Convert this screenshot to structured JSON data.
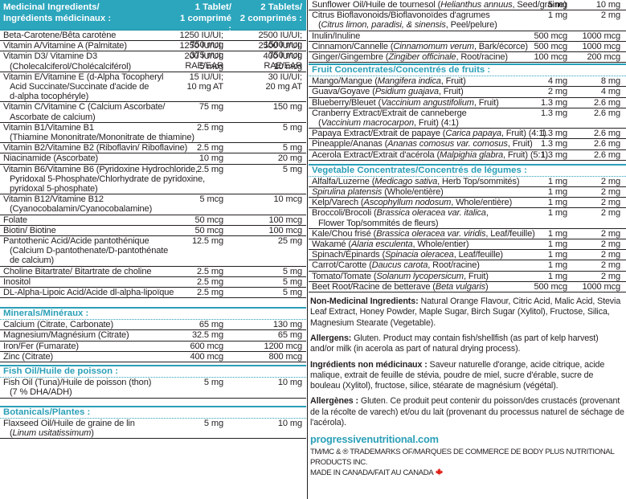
{
  "header": {
    "name_en": "Medicinal Ingredients/",
    "name_fr": "Ingrédients médicinaux :",
    "one_en": "1 Tablet/",
    "one_fr": "1 comprimé :",
    "two_en": "2 Tablets/",
    "two_fr": "2 comprimés :"
  },
  "left_rows": [
    {
      "lines": [
        "Beta-Carotene/Bêta carotène"
      ],
      "v1": [
        "1250 IU/UI;",
        "750 mcg"
      ],
      "v2": [
        "2500 IU/UI;",
        "1500 mcg"
      ]
    },
    {
      "lines": [
        "Vitamin A/Vitamine A (Palmitate)"
      ],
      "v1": [
        "1250 IU/UI;",
        "375 mcg RAE/EAR"
      ],
      "v2": [
        "2500 IU/UI;",
        "750 mcg RAE/EAR"
      ]
    },
    {
      "lines": [
        "Vitamin D3/ Vitamine D3",
        "(Cholecalciferol/Cholécalciférol)"
      ],
      "v1": [
        "200 IU/UI;",
        "5 mcg"
      ],
      "v2": [
        "400 IU/UI;",
        "10 mcg"
      ]
    },
    {
      "lines": [
        "Vitamin E/Vitamine E (d-Alpha Tocopheryl",
        "Acid Succinate/Succinate d'acide de",
        "d-alpha tocophéryle)"
      ],
      "v1": [
        "15 IU/UI;",
        "10 mg AT"
      ],
      "v2": [
        "30 IU/UI;",
        "20 mg AT"
      ]
    },
    {
      "lines": [
        "Vitamin C/Vitamine C (Calcium Ascorbate/",
        "Ascorbate de calcium)"
      ],
      "v1": [
        "75 mg"
      ],
      "v2": [
        "150 mg"
      ]
    },
    {
      "lines": [
        "Vitamin B1/Vitamine B1",
        "(Thiamine Mononitrate/Mononitrate de thiamine)"
      ],
      "v1": [
        "2.5 mg"
      ],
      "v2": [
        "5 mg"
      ]
    },
    {
      "lines": [
        "Vitamin B2/Vitamine B2 (Riboflavin/ Riboflavine)"
      ],
      "v1": [
        "2.5 mg"
      ],
      "v2": [
        "5 mg"
      ]
    },
    {
      "lines": [
        "Niacinamide (Ascorbate)"
      ],
      "v1": [
        "10 mg"
      ],
      "v2": [
        "20 mg"
      ]
    },
    {
      "lines": [
        "Vitamin B6/Vitamine B6 (Pyridoxine Hydrochloride,",
        "Pyridoxal 5-Phosphate/Chlorhydrate de pyridoxine,",
        "pyridoxal 5-phosphate)"
      ],
      "v1": [
        "2.5 mg"
      ],
      "v2": [
        "5 mg"
      ]
    },
    {
      "lines": [
        "Vitamin B12/Vitamine B12",
        "(Cyanocobalamin/Cyanocobalamine)"
      ],
      "v1": [
        "5 mcg"
      ],
      "v2": [
        "10 mcg"
      ]
    },
    {
      "lines": [
        "Folate"
      ],
      "v1": [
        "50 mcg"
      ],
      "v2": [
        "100 mcg"
      ]
    },
    {
      "lines": [
        "Biotin/ Biotine"
      ],
      "v1": [
        "50 mcg"
      ],
      "v2": [
        "100 mcg"
      ]
    },
    {
      "lines": [
        "Pantothenic Acid/Acide pantothénique",
        "(Calcium D-pantothenate/D-pantothénate",
        "de calcium)"
      ],
      "v1": [
        "12.5 mg"
      ],
      "v2": [
        "25 mg"
      ]
    },
    {
      "lines": [
        "Choline Bitartrate/ Bitartrate de choline"
      ],
      "v1": [
        "2.5 mg"
      ],
      "v2": [
        "5 mg"
      ]
    },
    {
      "lines": [
        "Inositol"
      ],
      "v1": [
        "2.5 mg"
      ],
      "v2": [
        "5 mg"
      ]
    },
    {
      "lines": [
        "DL-Alpha-Lipoic Acid/Acide dl-alpha-lipoïque"
      ],
      "v1": [
        "2.5 mg"
      ],
      "v2": [
        "5 mg"
      ]
    }
  ],
  "minerals": {
    "title": "Minerals/Minéraux :",
    "rows": [
      {
        "lines": [
          "Calcium (Citrate, Carbonate)"
        ],
        "v1": [
          "65 mg"
        ],
        "v2": [
          "130 mg"
        ]
      },
      {
        "lines": [
          "Magnesium/Magnésium (Citrate)"
        ],
        "v1": [
          "32.5 mg"
        ],
        "v2": [
          "65 mg"
        ]
      },
      {
        "lines": [
          "Iron/Fer (Fumarate)"
        ],
        "v1": [
          "600 mcg"
        ],
        "v2": [
          "1200 mcg"
        ]
      },
      {
        "lines": [
          "Zinc (Citrate)"
        ],
        "v1": [
          "400 mcg"
        ],
        "v2": [
          "800 mcg"
        ]
      }
    ]
  },
  "fish_oil": {
    "title": "Fish Oil/Huile de poisson :",
    "rows": [
      {
        "lines": [
          "Fish Oil (Tuna)/Huile de poisson (thon)",
          "(7 % DHA/ADH)"
        ],
        "v1": [
          "5 mg"
        ],
        "v2": [
          "10 mg"
        ]
      }
    ]
  },
  "botanicals": {
    "title": "Botanicals/Plantes :",
    "rows": [
      {
        "lines": [
          "Flaxseed Oil/Huile de graine de lin",
          "(Linum usitatissimum)"
        ],
        "v1": [
          "5 mg"
        ],
        "v2": [
          "10 mg"
        ]
      }
    ]
  },
  "right_top_rows": [
    {
      "lines": [
        "Sunflower Oil/Huile de tournesol (Helianthus annuus, Seed/graine)"
      ],
      "v1": [
        "5 mg"
      ],
      "v2": [
        "10 mg"
      ]
    },
    {
      "lines": [
        "Citrus Bioflavonoids/Bioflavonoïdes d'agrumes",
        "(Citrus limon, paradisi, & sinensis, Peel/pelure)"
      ],
      "v1": [
        "1 mg"
      ],
      "v2": [
        "2 mg"
      ]
    },
    {
      "lines": [
        "Inulin/Inuline"
      ],
      "v1": [
        "500 mcg"
      ],
      "v2": [
        "1000 mcg"
      ]
    },
    {
      "lines": [
        "Cinnamon/Cannelle (Cinnamomum verum, Bark/écorce)"
      ],
      "v1": [
        "500 mcg"
      ],
      "v2": [
        "1000 mcg"
      ]
    },
    {
      "lines": [
        "Ginger/Gingembre (Zingiber officinale, Root/racine)"
      ],
      "v1": [
        "100 mcg"
      ],
      "v2": [
        "200 mcg"
      ]
    }
  ],
  "fruit": {
    "title": "Fruit Concentrates/Concentrés de fruits :",
    "rows": [
      {
        "lines": [
          "Mango/Mangue (Mangifera indica, Fruit)"
        ],
        "v1": [
          "4 mg"
        ],
        "v2": [
          "8 mg"
        ]
      },
      {
        "lines": [
          "Guava/Goyave (Psidium guajava, Fruit)"
        ],
        "v1": [
          "2 mg"
        ],
        "v2": [
          "4 mg"
        ]
      },
      {
        "lines": [
          "Blueberry/Bleuet (Vaccinium angustifolium, Fruit)"
        ],
        "v1": [
          "1.3 mg"
        ],
        "v2": [
          "2.6 mg"
        ]
      },
      {
        "lines": [
          "Cranberry Extract/Extrait de canneberge",
          "(Vaccinium macrocarpon, Fruit) (4:1)"
        ],
        "v1": [
          "1.3 mg"
        ],
        "v2": [
          "2.6 mg"
        ]
      },
      {
        "lines": [
          "Papaya Extract/Extrait de papaye (Carica papaya, Fruit) (4:1)"
        ],
        "v1": [
          "1.3 mg"
        ],
        "v2": [
          "2.6 mg"
        ]
      },
      {
        "lines": [
          "Pineapple/Ananas (Ananas comosus var. comosus, Fruit)"
        ],
        "v1": [
          "1.3 mg"
        ],
        "v2": [
          "2.6 mg"
        ]
      },
      {
        "lines": [
          "Acerola Extract/Extrait d'acérola (Malpighia glabra, Fruit) (5:1)"
        ],
        "v1": [
          "1.3 mg"
        ],
        "v2": [
          "2.6 mg"
        ]
      }
    ]
  },
  "vegetable": {
    "title": "Vegetable Concentrates/Concentrés de légumes :",
    "rows": [
      {
        "lines": [
          "Alfalfa/Luzerne (Medicago sativa, Herb Top/sommités)"
        ],
        "v1": [
          "1 mg"
        ],
        "v2": [
          "2 mg"
        ]
      },
      {
        "lines": [
          "Spirulina platensis (Whole/entière)"
        ],
        "v1": [
          "1 mg"
        ],
        "v2": [
          "2 mg"
        ]
      },
      {
        "lines": [
          "Kelp/Varech (Ascophyllum nodosum, Whole/entière)"
        ],
        "v1": [
          "1 mg"
        ],
        "v2": [
          "2 mg"
        ]
      },
      {
        "lines": [
          "Broccoli/Brocoli (Brassica oleracea var. italica,",
          "Flower Top/sommités de fleurs)"
        ],
        "v1": [
          "1 mg"
        ],
        "v2": [
          "2 mg"
        ]
      },
      {
        "lines": [
          "Kale/Chou frisé (Brassica oleracea var. viridis, Leaf/feuille)"
        ],
        "v1": [
          "1 mg"
        ],
        "v2": [
          "2 mg"
        ]
      },
      {
        "lines": [
          "Wakamé (Alaria esculenta, Whole/entier)"
        ],
        "v1": [
          "1 mg"
        ],
        "v2": [
          "2 mg"
        ]
      },
      {
        "lines": [
          "Spinach/Épinards (Spinacia oleracea, Leaf/feuille)"
        ],
        "v1": [
          "1 mg"
        ],
        "v2": [
          "2 mg"
        ]
      },
      {
        "lines": [
          "Carrot/Carotte (Daucus carota, Root/racine)"
        ],
        "v1": [
          "1 mg"
        ],
        "v2": [
          "2 mg"
        ]
      },
      {
        "lines": [
          "Tomato/Tomate (Solanum lycopersicum, Fruit)"
        ],
        "v1": [
          "1 mg"
        ],
        "v2": [
          "2 mg"
        ]
      },
      {
        "lines": [
          "Beet Root/Racine de betterave (Beta vulgaris)"
        ],
        "v1": [
          "500 mcg"
        ],
        "v2": [
          "1000 mcg"
        ]
      }
    ]
  },
  "non_medicinal_en": {
    "label": "Non-Medicinal Ingredients:",
    "text": " Natural Orange Flavour, Citric Acid, Malic Acid, Stevia Leaf Extract, Honey Powder, Maple Sugar, Birch Sugar (Xylitol), Fructose, Silica, Magnesium Stearate (Vegetable)."
  },
  "allergens_en": {
    "label": "Allergens:",
    "text": " Gluten. Product may contain fish/shellfish (as part of kelp harvest) and/or milk (in acerola as part of natural drying process)."
  },
  "non_medicinal_fr": {
    "label": "Ingrédients non médicinaux :",
    "text": " Saveur naturelle d'orange, acide citrique, acide malique, extrait de feuille de stévia, poudre de miel, sucre d'érable, sucre de bouleau (Xylitol), fructose, silice, stéarate de magnésium (végétal)."
  },
  "allergens_fr": {
    "label": "Allergènes :",
    "text": " Gluten. Ce produit peut contenir du poisson/des crustacés (provenant de la récolte de varech) et/ou du lait (provenant du processus naturel de séchage de l'acérola)."
  },
  "website": "progressivenutritional.com",
  "trademark": "TM/MC & ® TRADEMARKS OF/MARQUES DE COMMERCE DE BODY PLUS NUTRITIONAL PRODUCTS INC.",
  "made_in": "MADE IN CANADA/FAIT AU CANADA",
  "colors": {
    "accent": "#2ba6bd",
    "leaf": "#e2231a"
  }
}
